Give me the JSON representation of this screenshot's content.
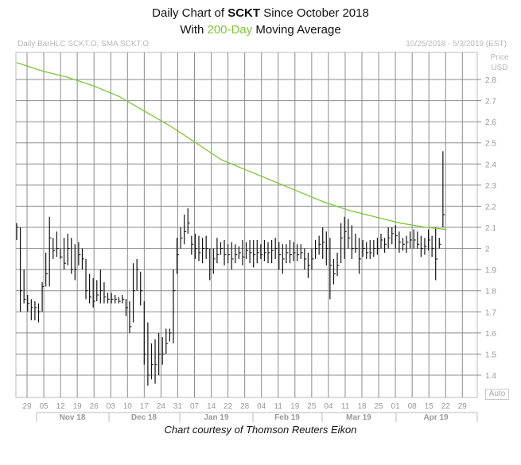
{
  "header": {
    "line1_pre": "Daily Chart of ",
    "line1_bold": "SCKT",
    "line1_post": " Since October 2018",
    "line2_pre": "With ",
    "line2_green": "200-Day",
    "line2_post": " Moving Average",
    "left_info": "Daily BarHLC SCKT.O, SMA SCKT.O",
    "right_info": "10/25/2018 - 5/3/2019 (EST)",
    "price_label": "Price",
    "currency_label": "USD",
    "auto_label": "Auto"
  },
  "credit": "Chart courtesy of Thomson Reuters Eikon",
  "colors": {
    "sma": "#7dc733",
    "bars": "#111111",
    "grid": "#888888"
  },
  "chart_data": {
    "type": "bar",
    "subtype": "HLC",
    "ylim": [
      1.3,
      2.9
    ],
    "y_ticks": [
      1.4,
      1.5,
      1.6,
      1.7,
      1.8,
      1.9,
      2,
      2.1,
      2.2,
      2.3,
      2.4,
      2.5,
      2.6,
      2.7,
      2.8
    ],
    "x_ticks": [
      "29",
      "05",
      "12",
      "19",
      "26",
      "03",
      "10",
      "17",
      "24",
      "31",
      "07",
      "14",
      "22",
      "28",
      "04",
      "11",
      "19",
      "25",
      "04",
      "11",
      "18",
      "25",
      "01",
      "08",
      "15",
      "22",
      "29"
    ],
    "months": [
      "Nov 18",
      "Dec 18",
      "Jan 19",
      "Feb 19",
      "Mar 19",
      "Apr 19"
    ],
    "bars": [
      {
        "h": 2.12,
        "l": 2.04,
        "c": 2.1
      },
      {
        "h": 2.1,
        "l": 1.7,
        "c": 1.8
      },
      {
        "h": 1.9,
        "l": 1.74,
        "c": 1.76
      },
      {
        "h": 1.78,
        "l": 1.7,
        "c": 1.74
      },
      {
        "h": 1.76,
        "l": 1.66,
        "c": 1.72
      },
      {
        "h": 1.75,
        "l": 1.66,
        "c": 1.72
      },
      {
        "h": 1.74,
        "l": 1.65,
        "c": 1.7
      },
      {
        "h": 1.84,
        "l": 1.7,
        "c": 1.82
      },
      {
        "h": 1.98,
        "l": 1.82,
        "c": 1.88
      },
      {
        "h": 2.15,
        "l": 1.82,
        "c": 2.05
      },
      {
        "h": 2.05,
        "l": 1.95,
        "c": 1.99
      },
      {
        "h": 2.08,
        "l": 1.96,
        "c": 2.0
      },
      {
        "h": 2.0,
        "l": 1.95,
        "c": 1.96
      },
      {
        "h": 2.05,
        "l": 1.9,
        "c": 1.93
      },
      {
        "h": 2.07,
        "l": 1.92,
        "c": 2.0
      },
      {
        "h": 2.05,
        "l": 1.88,
        "c": 1.9
      },
      {
        "h": 2.02,
        "l": 1.85,
        "c": 1.9
      },
      {
        "h": 2.03,
        "l": 1.92,
        "c": 1.97
      },
      {
        "h": 2.0,
        "l": 1.9,
        "c": 1.95
      },
      {
        "h": 1.95,
        "l": 1.76,
        "c": 1.8
      },
      {
        "h": 1.88,
        "l": 1.74,
        "c": 1.77
      },
      {
        "h": 1.86,
        "l": 1.72,
        "c": 1.75
      },
      {
        "h": 1.85,
        "l": 1.75,
        "c": 1.78
      },
      {
        "h": 1.9,
        "l": 1.74,
        "c": 1.8
      },
      {
        "h": 1.84,
        "l": 1.74,
        "c": 1.77
      },
      {
        "h": 1.79,
        "l": 1.74,
        "c": 1.76
      },
      {
        "h": 1.79,
        "l": 1.74,
        "c": 1.76
      },
      {
        "h": 1.78,
        "l": 1.74,
        "c": 1.76
      },
      {
        "h": 1.77,
        "l": 1.74,
        "c": 1.75
      },
      {
        "h": 1.78,
        "l": 1.74,
        "c": 1.76
      },
      {
        "h": 1.76,
        "l": 1.68,
        "c": 1.72
      },
      {
        "h": 1.75,
        "l": 1.6,
        "c": 1.63
      },
      {
        "h": 1.93,
        "l": 1.65,
        "c": 1.8
      },
      {
        "h": 1.95,
        "l": 1.8,
        "c": 1.9
      },
      {
        "h": 1.89,
        "l": 1.73,
        "c": 1.8
      },
      {
        "h": 1.75,
        "l": 1.45,
        "c": 1.5
      },
      {
        "h": 1.65,
        "l": 1.35,
        "c": 1.4
      },
      {
        "h": 1.55,
        "l": 1.38,
        "c": 1.45
      },
      {
        "h": 1.57,
        "l": 1.36,
        "c": 1.45
      },
      {
        "h": 1.6,
        "l": 1.4,
        "c": 1.5
      },
      {
        "h": 1.58,
        "l": 1.45,
        "c": 1.5
      },
      {
        "h": 1.62,
        "l": 1.5,
        "c": 1.55
      },
      {
        "h": 1.62,
        "l": 1.56,
        "c": 1.6
      },
      {
        "h": 1.9,
        "l": 1.55,
        "c": 1.8
      },
      {
        "h": 2.05,
        "l": 1.88,
        "c": 1.97
      },
      {
        "h": 2.1,
        "l": 2.0,
        "c": 2.05
      },
      {
        "h": 2.16,
        "l": 2.02,
        "c": 2.08
      },
      {
        "h": 2.19,
        "l": 2.07,
        "c": 2.12
      },
      {
        "h": 2.06,
        "l": 1.97,
        "c": 2.02
      },
      {
        "h": 2.07,
        "l": 1.95,
        "c": 2.0
      },
      {
        "h": 2.06,
        "l": 1.94,
        "c": 1.98
      },
      {
        "h": 2.05,
        "l": 1.93,
        "c": 2.0
      },
      {
        "h": 2.06,
        "l": 1.95,
        "c": 2.0
      },
      {
        "h": 2.0,
        "l": 1.85,
        "c": 1.9
      },
      {
        "h": 2.0,
        "l": 1.88,
        "c": 1.95
      },
      {
        "h": 2.05,
        "l": 1.93,
        "c": 1.97
      },
      {
        "h": 2.03,
        "l": 1.97,
        "c": 2.0
      },
      {
        "h": 2.04,
        "l": 1.92,
        "c": 1.97
      },
      {
        "h": 2.02,
        "l": 1.93,
        "c": 1.97
      },
      {
        "h": 2.03,
        "l": 1.9,
        "c": 1.95
      },
      {
        "h": 2.02,
        "l": 1.93,
        "c": 1.97
      },
      {
        "h": 2.01,
        "l": 1.95,
        "c": 1.98
      },
      {
        "h": 2.04,
        "l": 1.92,
        "c": 1.96
      },
      {
        "h": 2.03,
        "l": 1.95,
        "c": 1.99
      },
      {
        "h": 2.04,
        "l": 1.93,
        "c": 1.98
      },
      {
        "h": 2.04,
        "l": 1.91,
        "c": 1.97
      },
      {
        "h": 2.04,
        "l": 1.93,
        "c": 1.98
      },
      {
        "h": 2.02,
        "l": 1.95,
        "c": 1.97
      },
      {
        "h": 2.04,
        "l": 1.94,
        "c": 1.98
      },
      {
        "h": 2.03,
        "l": 1.93,
        "c": 1.98
      },
      {
        "h": 2.04,
        "l": 1.93,
        "c": 1.99
      },
      {
        "h": 2.05,
        "l": 1.95,
        "c": 2.0
      },
      {
        "h": 2.03,
        "l": 1.9,
        "c": 1.97
      },
      {
        "h": 2.02,
        "l": 1.88,
        "c": 1.95
      },
      {
        "h": 2.02,
        "l": 1.93,
        "c": 1.98
      },
      {
        "h": 2.04,
        "l": 1.93,
        "c": 1.97
      },
      {
        "h": 2.03,
        "l": 1.94,
        "c": 1.98
      },
      {
        "h": 2.02,
        "l": 1.94,
        "c": 1.97
      },
      {
        "h": 2.02,
        "l": 1.95,
        "c": 1.98
      },
      {
        "h": 2.0,
        "l": 1.9,
        "c": 1.95
      },
      {
        "h": 1.98,
        "l": 1.86,
        "c": 1.92
      },
      {
        "h": 2.0,
        "l": 1.9,
        "c": 1.95
      },
      {
        "h": 2.04,
        "l": 1.95,
        "c": 2.0
      },
      {
        "h": 2.06,
        "l": 1.97,
        "c": 2.02
      },
      {
        "h": 2.1,
        "l": 1.95,
        "c": 2.03
      },
      {
        "h": 2.08,
        "l": 1.92,
        "c": 2.0
      },
      {
        "h": 2.05,
        "l": 1.76,
        "c": 1.92
      },
      {
        "h": 1.95,
        "l": 1.83,
        "c": 1.88
      },
      {
        "h": 1.98,
        "l": 1.87,
        "c": 1.92
      },
      {
        "h": 2.12,
        "l": 1.93,
        "c": 2.05
      },
      {
        "h": 2.15,
        "l": 1.95,
        "c": 2.08
      },
      {
        "h": 2.14,
        "l": 2.0,
        "c": 2.05
      },
      {
        "h": 2.11,
        "l": 1.95,
        "c": 2.0
      },
      {
        "h": 2.07,
        "l": 1.98,
        "c": 2.0
      },
      {
        "h": 2.05,
        "l": 1.88,
        "c": 1.95
      },
      {
        "h": 2.04,
        "l": 1.96,
        "c": 2.0
      },
      {
        "h": 2.03,
        "l": 1.95,
        "c": 1.98
      },
      {
        "h": 2.04,
        "l": 1.95,
        "c": 1.98
      },
      {
        "h": 2.04,
        "l": 1.96,
        "c": 2.0
      },
      {
        "h": 2.05,
        "l": 1.97,
        "c": 2.0
      },
      {
        "h": 2.07,
        "l": 2.0,
        "c": 2.04
      },
      {
        "h": 2.05,
        "l": 1.98,
        "c": 2.02
      },
      {
        "h": 2.1,
        "l": 2.0,
        "c": 2.05
      },
      {
        "h": 2.1,
        "l": 2.02,
        "c": 2.07
      },
      {
        "h": 2.11,
        "l": 2.0,
        "c": 2.06
      },
      {
        "h": 2.08,
        "l": 1.98,
        "c": 2.03
      },
      {
        "h": 2.05,
        "l": 1.99,
        "c": 2.02
      },
      {
        "h": 2.06,
        "l": 1.98,
        "c": 2.03
      },
      {
        "h": 2.08,
        "l": 2.0,
        "c": 2.04
      },
      {
        "h": 2.09,
        "l": 2.0,
        "c": 2.04
      },
      {
        "h": 2.08,
        "l": 2.0,
        "c": 2.02
      },
      {
        "h": 2.06,
        "l": 1.96,
        "c": 2.0
      },
      {
        "h": 2.05,
        "l": 1.97,
        "c": 2.01
      },
      {
        "h": 2.09,
        "l": 1.99,
        "c": 2.04
      },
      {
        "h": 2.06,
        "l": 1.96,
        "c": 2.0
      },
      {
        "h": 2.1,
        "l": 1.85,
        "c": 1.95
      },
      {
        "h": 2.05,
        "l": 2.0,
        "c": 2.02
      },
      {
        "h": 2.46,
        "l": 2.1,
        "c": 2.16
      }
    ],
    "sma": [
      [
        0,
        2.88
      ],
      [
        10,
        2.84
      ],
      [
        20,
        2.81
      ],
      [
        30,
        2.77
      ],
      [
        40,
        2.72
      ],
      [
        50,
        2.65
      ],
      [
        60,
        2.58
      ],
      [
        70,
        2.5
      ],
      [
        80,
        2.42
      ],
      [
        90,
        2.37
      ],
      [
        100,
        2.32
      ],
      [
        110,
        2.27
      ],
      [
        120,
        2.22
      ],
      [
        130,
        2.18
      ],
      [
        140,
        2.15
      ],
      [
        150,
        2.12
      ],
      [
        160,
        2.1
      ],
      [
        168,
        2.09
      ]
    ]
  }
}
